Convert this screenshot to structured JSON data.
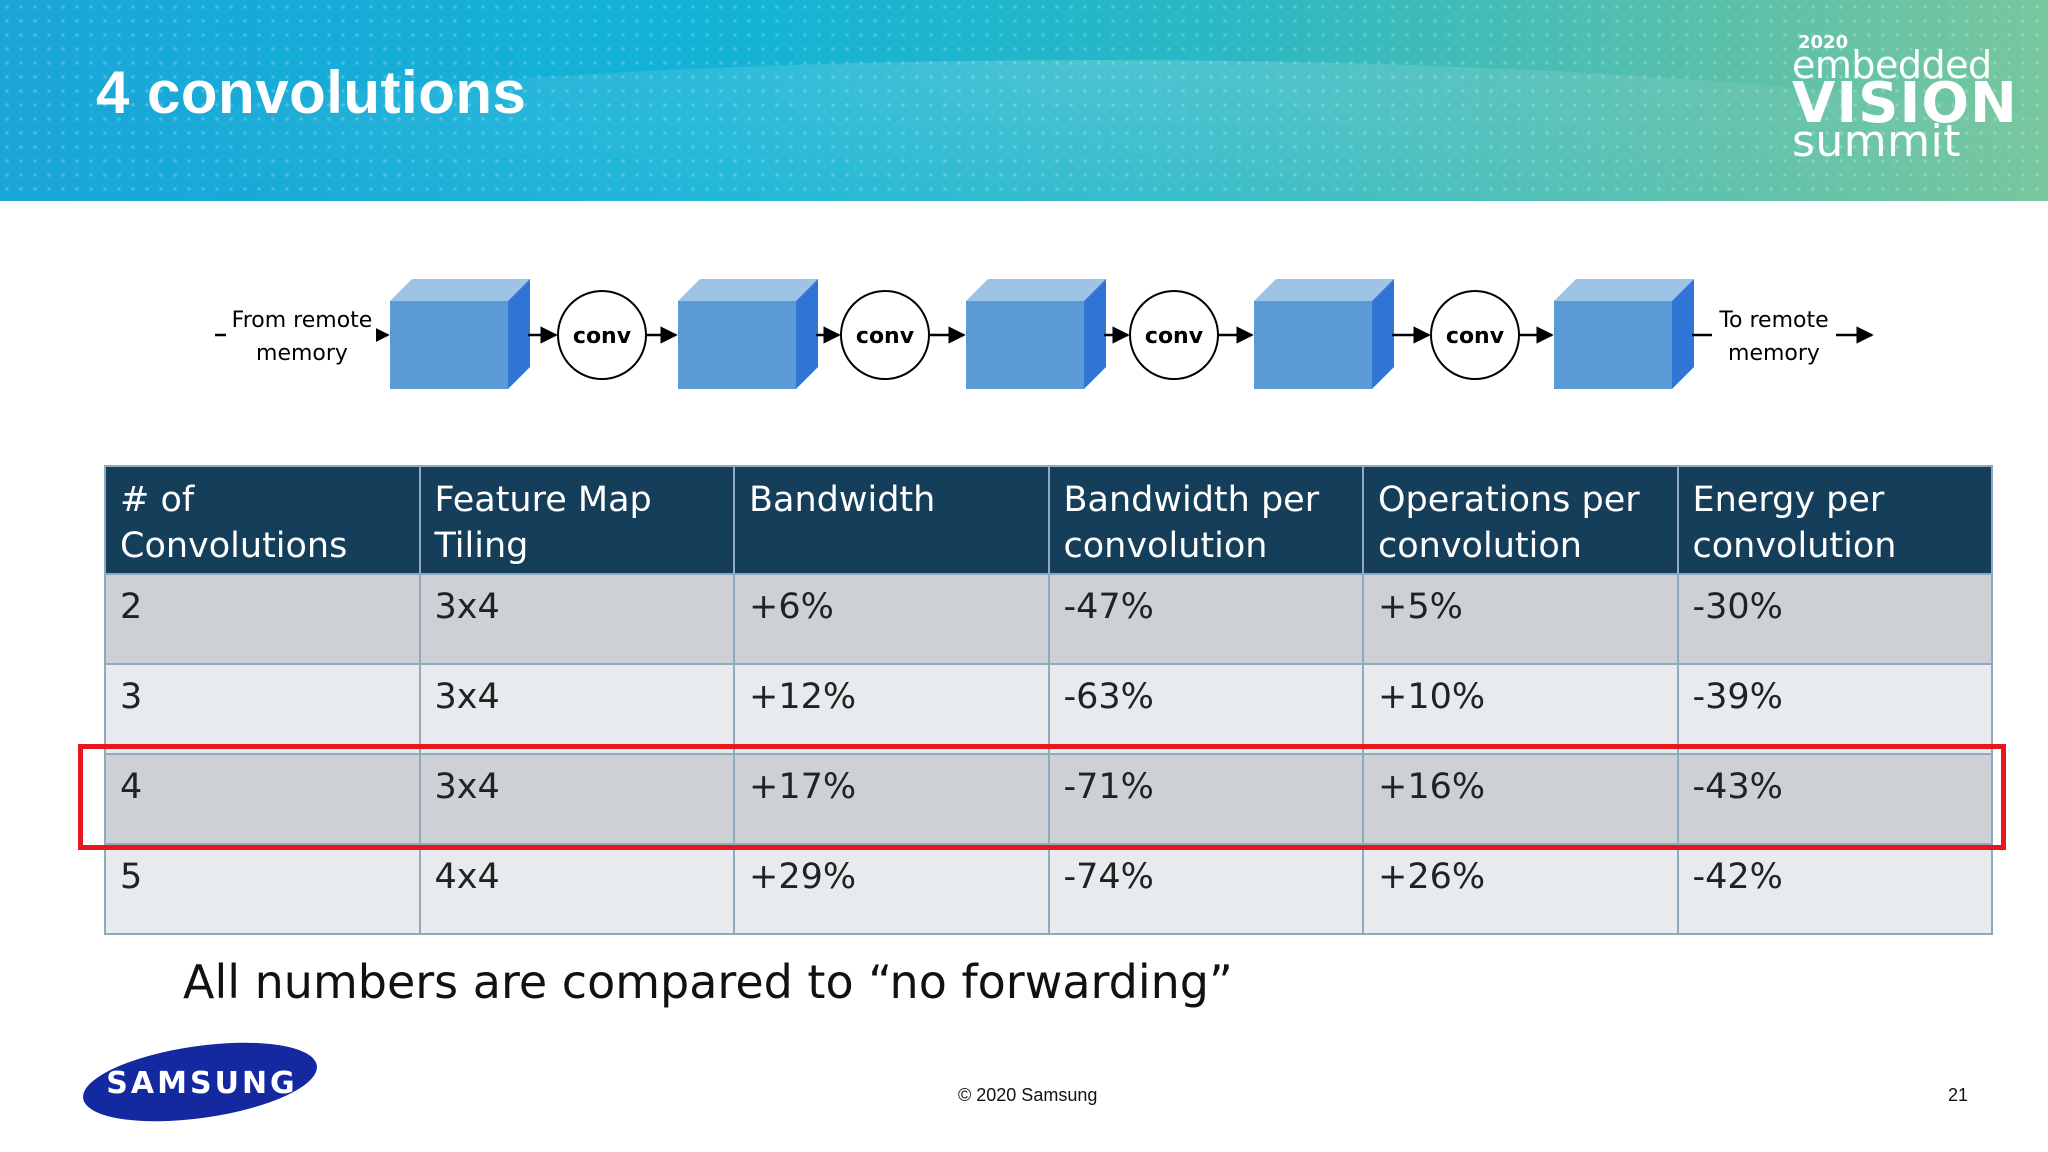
{
  "slide": {
    "title": "4 convolutions",
    "logo": {
      "year": "2020",
      "line1": "embedded",
      "line2": "VISION",
      "line3": "summit"
    }
  },
  "diagram": {
    "input_label": [
      "From remote",
      "memory"
    ],
    "output_label": [
      "To remote",
      "memory"
    ],
    "op_label": "conv",
    "colors": {
      "cube_front": "#5b9bd5",
      "cube_top": "#9dc3e6",
      "cube_side": "#2e75d6"
    }
  },
  "table": {
    "headers": [
      [
        "# of Convolutions"
      ],
      [
        "Feature Map",
        "Tiling"
      ],
      [
        "Bandwidth"
      ],
      [
        "Bandwidth per",
        "convolution"
      ],
      [
        "Operations per",
        "convolution"
      ],
      [
        "Energy per",
        "convolution"
      ]
    ],
    "rows": [
      [
        "2",
        "3x4",
        "+6%",
        "-47%",
        "+5%",
        "-30%"
      ],
      [
        "3",
        "3x4",
        "+12%",
        "-63%",
        "+10%",
        "-39%"
      ],
      [
        "4",
        "3x4",
        "+17%",
        "-71%",
        "+16%",
        "-43%"
      ],
      [
        "5",
        "4x4",
        "+29%",
        "-74%",
        "+26%",
        "-42%"
      ]
    ],
    "highlighted_row": 2
  },
  "note": "All numbers are compared to “no forwarding”",
  "footer": {
    "brand": "SAMSUNG",
    "copyright": "© 2020 Samsung",
    "page_number": "21"
  }
}
